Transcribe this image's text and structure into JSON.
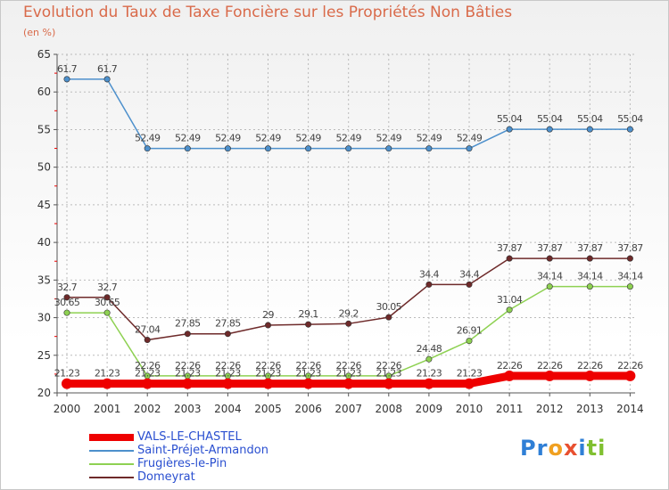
{
  "title": "Evolution du Taux de Taxe Foncière sur les Propriétés Non Bâties",
  "subtitle": "(en %)",
  "logo": {
    "letters": [
      "P",
      "r",
      "o",
      "x",
      "i",
      "t",
      "i"
    ],
    "colors": [
      "#2f7fd6",
      "#2f7fd6",
      "#f0a020",
      "#e85030",
      "#2f7fd6",
      "#80c030",
      "#80c030"
    ]
  },
  "chart_data": {
    "type": "line",
    "title": "Evolution du Taux de Taxe Foncière sur les Propriétés Non Bâties",
    "ylabel": "(en %)",
    "xlabel": "",
    "ylim": [
      20,
      65
    ],
    "yticks": [
      "20",
      "25",
      "30",
      "35",
      "40",
      "45",
      "50",
      "55",
      "60",
      "65"
    ],
    "categories": [
      "2000",
      "2001",
      "2002",
      "2003",
      "2004",
      "2005",
      "2006",
      "2007",
      "2008",
      "2009",
      "2010",
      "2011",
      "2012",
      "2013",
      "2014"
    ],
    "series": [
      {
        "name": "Saint-Préjet-Armandon",
        "color": "#4d90cc",
        "values": [
          61.7,
          61.7,
          52.49,
          52.49,
          52.49,
          52.49,
          52.49,
          52.49,
          52.49,
          52.49,
          52.49,
          55.04,
          55.04,
          55.04,
          55.04
        ],
        "labels": [
          "61.7",
          "61.7",
          "52.49",
          "52.49",
          "52.49",
          "52.49",
          "52.49",
          "52.49",
          "52.49",
          "52.49",
          "52.49",
          "55.04",
          "55.04",
          "55.04",
          "55.04"
        ]
      },
      {
        "name": "Domeyrat",
        "color": "#6e2a2a",
        "values": [
          32.7,
          32.7,
          27.04,
          27.85,
          27.85,
          29,
          29.1,
          29.2,
          30.05,
          34.4,
          34.4,
          37.87,
          37.87,
          37.87,
          37.87
        ],
        "labels": [
          "32.7",
          "32.7",
          "27.04",
          "27.85",
          "27.85",
          "29",
          "29.1",
          "29.2",
          "30.05",
          "34.4",
          "34.4",
          "37.87",
          "37.87",
          "37.87",
          "37.87"
        ]
      },
      {
        "name": "Frugières-le-Pin",
        "color": "#8ed152",
        "values": [
          30.65,
          30.65,
          22.26,
          22.26,
          22.26,
          22.26,
          22.26,
          22.26,
          22.26,
          24.48,
          26.91,
          31.04,
          34.14,
          34.14,
          34.14
        ],
        "labels": [
          "30.65",
          "30.65",
          "22.26",
          "22.26",
          "22.26",
          "22.26",
          "22.26",
          "22.26",
          "22.26",
          "24.48",
          "26.91",
          "31.04",
          "34.14",
          "34.14",
          "34.14"
        ]
      },
      {
        "name": "VALS-LE-CHASTEL",
        "color": "#ee0000",
        "values": [
          21.23,
          21.23,
          21.23,
          21.23,
          21.23,
          21.23,
          21.23,
          21.23,
          21.23,
          21.23,
          21.23,
          22.26,
          22.26,
          22.26,
          22.26
        ],
        "labels": [
          "21.23",
          "21.23",
          "21.23",
          "21.23",
          "21.23",
          "21.23",
          "21.23",
          "21.23",
          "21.23",
          "21.23",
          "21.23",
          "22.26",
          "22.26",
          "22.26",
          "22.26"
        ]
      }
    ],
    "legend": [
      {
        "name": "VALS-LE-CHASTEL",
        "color": "#ee0000",
        "thick": true
      },
      {
        "name": "Saint-Préjet-Armandon",
        "color": "#4d90cc",
        "thick": false
      },
      {
        "name": "Frugières-le-Pin",
        "color": "#8ed152",
        "thick": false
      },
      {
        "name": "Domeyrat",
        "color": "#6e2a2a",
        "thick": false
      }
    ]
  }
}
